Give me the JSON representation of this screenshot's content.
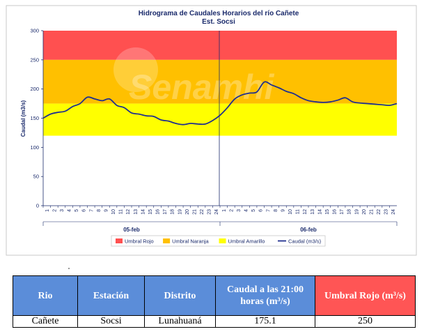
{
  "chart_data": {
    "type": "line",
    "title": "Hidrograma de Caudales Horarios del río Cañete",
    "subtitle": "Est. Socsi",
    "ylabel": "Caudal  (m3/s)",
    "xlabel": "",
    "ylim": [
      0,
      300
    ],
    "yticks": [
      0,
      50,
      100,
      150,
      200,
      250,
      300
    ],
    "grid": false,
    "legend_position": "bottom",
    "watermark": "Senamhi",
    "day_groups": [
      {
        "label": "05-feb",
        "tick_labels": [
          "1",
          "2",
          "3",
          "4",
          "5",
          "6",
          "7",
          "8",
          "9",
          "10",
          "11",
          "12",
          "13",
          "14",
          "15",
          "16",
          "17",
          "18",
          "19",
          "20",
          "21",
          "22",
          "23",
          "24"
        ]
      },
      {
        "label": "06-feb",
        "tick_labels": [
          "1",
          "2",
          "3",
          "4",
          "5",
          "6",
          "7",
          "8",
          "9",
          "10",
          "11",
          "12",
          "13",
          "14",
          "15",
          "16",
          "17",
          "18",
          "19",
          "20",
          "21",
          "22",
          "23",
          "24"
        ]
      }
    ],
    "thresholds": [
      {
        "name": "Umbral Rojo",
        "from": 250,
        "to": 300,
        "color": "#ff5050"
      },
      {
        "name": "Umbral Naranja",
        "from": 175,
        "to": 250,
        "color": "#ffc000"
      },
      {
        "name": "Umbral Amarillo",
        "from": 120,
        "to": 175,
        "color": "#ffff00"
      }
    ],
    "series": [
      {
        "name": "Caudal (m3/s)",
        "color": "#1f2f8f",
        "values": [
          150,
          157,
          160,
          162,
          170,
          175,
          186,
          183,
          180,
          183,
          172,
          168,
          159,
          157,
          154,
          153,
          147,
          145,
          141,
          139,
          141,
          140,
          140,
          146,
          155,
          168,
          183,
          190,
          193,
          195,
          212,
          207,
          202,
          196,
          192,
          185,
          180,
          178,
          177,
          178,
          181,
          185,
          178,
          176,
          175,
          174,
          173,
          172,
          175
        ]
      }
    ]
  },
  "table": {
    "headers": {
      "rio": "Rio",
      "estacion": "Estación",
      "distrito": "Distrito",
      "caudal": "Caudal a las 21:00 horas (m³/s)",
      "umbral": "Umbral Rojo (m³/s)"
    },
    "row": {
      "rio": "Cañete",
      "estacion": "Socsi",
      "distrito": "Lunahuaná",
      "caudal": "175.1",
      "umbral": "250"
    }
  }
}
